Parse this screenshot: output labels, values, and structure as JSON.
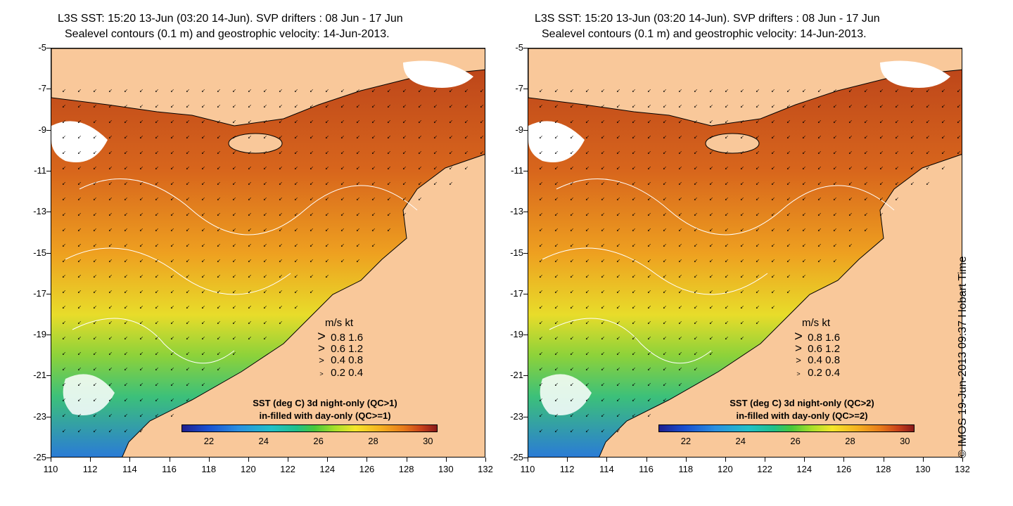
{
  "panels": [
    {
      "title_line1": "L3S SST: 15:20 13-Jun (03:20 14-Jun). SVP drifters : 08 Jun - 17 Jun",
      "title_line2": "Sealevel contours (0.1 m) and geostrophic velocity: 14-Jun-2013.",
      "colorbar_title_line1": "SST (deg C)  3d night-only (QC>1)",
      "colorbar_title_line2": "in-filled with day-only (QC>=1)"
    },
    {
      "title_line1": "L3S SST: 15:20 13-Jun (03:20 14-Jun). SVP drifters : 08 Jun - 17 Jun",
      "title_line2": "Sealevel contours (0.1 m) and geostrophic velocity: 14-Jun-2013.",
      "colorbar_title_line1": "SST (deg C)  3d night-only (QC>2)",
      "colorbar_title_line2": "in-filled with day-only (QC>=2)"
    }
  ],
  "y_axis_labels": [
    "-5",
    "-7",
    "-9",
    "-11",
    "-13",
    "-15",
    "-17",
    "-19",
    "-21",
    "-23",
    "-25"
  ],
  "x_axis_labels": [
    "110",
    "112",
    "114",
    "116",
    "118",
    "120",
    "122",
    "124",
    "126",
    "128",
    "130",
    "132"
  ],
  "velocity_legend": {
    "header_ms": "m/s",
    "header_kt": "kt",
    "rows": [
      {
        "ms": "0.8",
        "kt": "1.6"
      },
      {
        "ms": "0.6",
        "kt": "1.2"
      },
      {
        "ms": "0.4",
        "kt": "0.8"
      },
      {
        "ms": "0.2",
        "kt": "0.4"
      }
    ]
  },
  "colorbar_ticks": [
    "22",
    "24",
    "26",
    "28",
    "30"
  ],
  "copyright": "© IMOS 19-Jun-2013 09:37 Hobart Time",
  "colors": {
    "land": "#f9c89a",
    "warm_sst": "#c8501a",
    "cool_sst": "#2a8fe0",
    "cloud": "#ffffff"
  }
}
